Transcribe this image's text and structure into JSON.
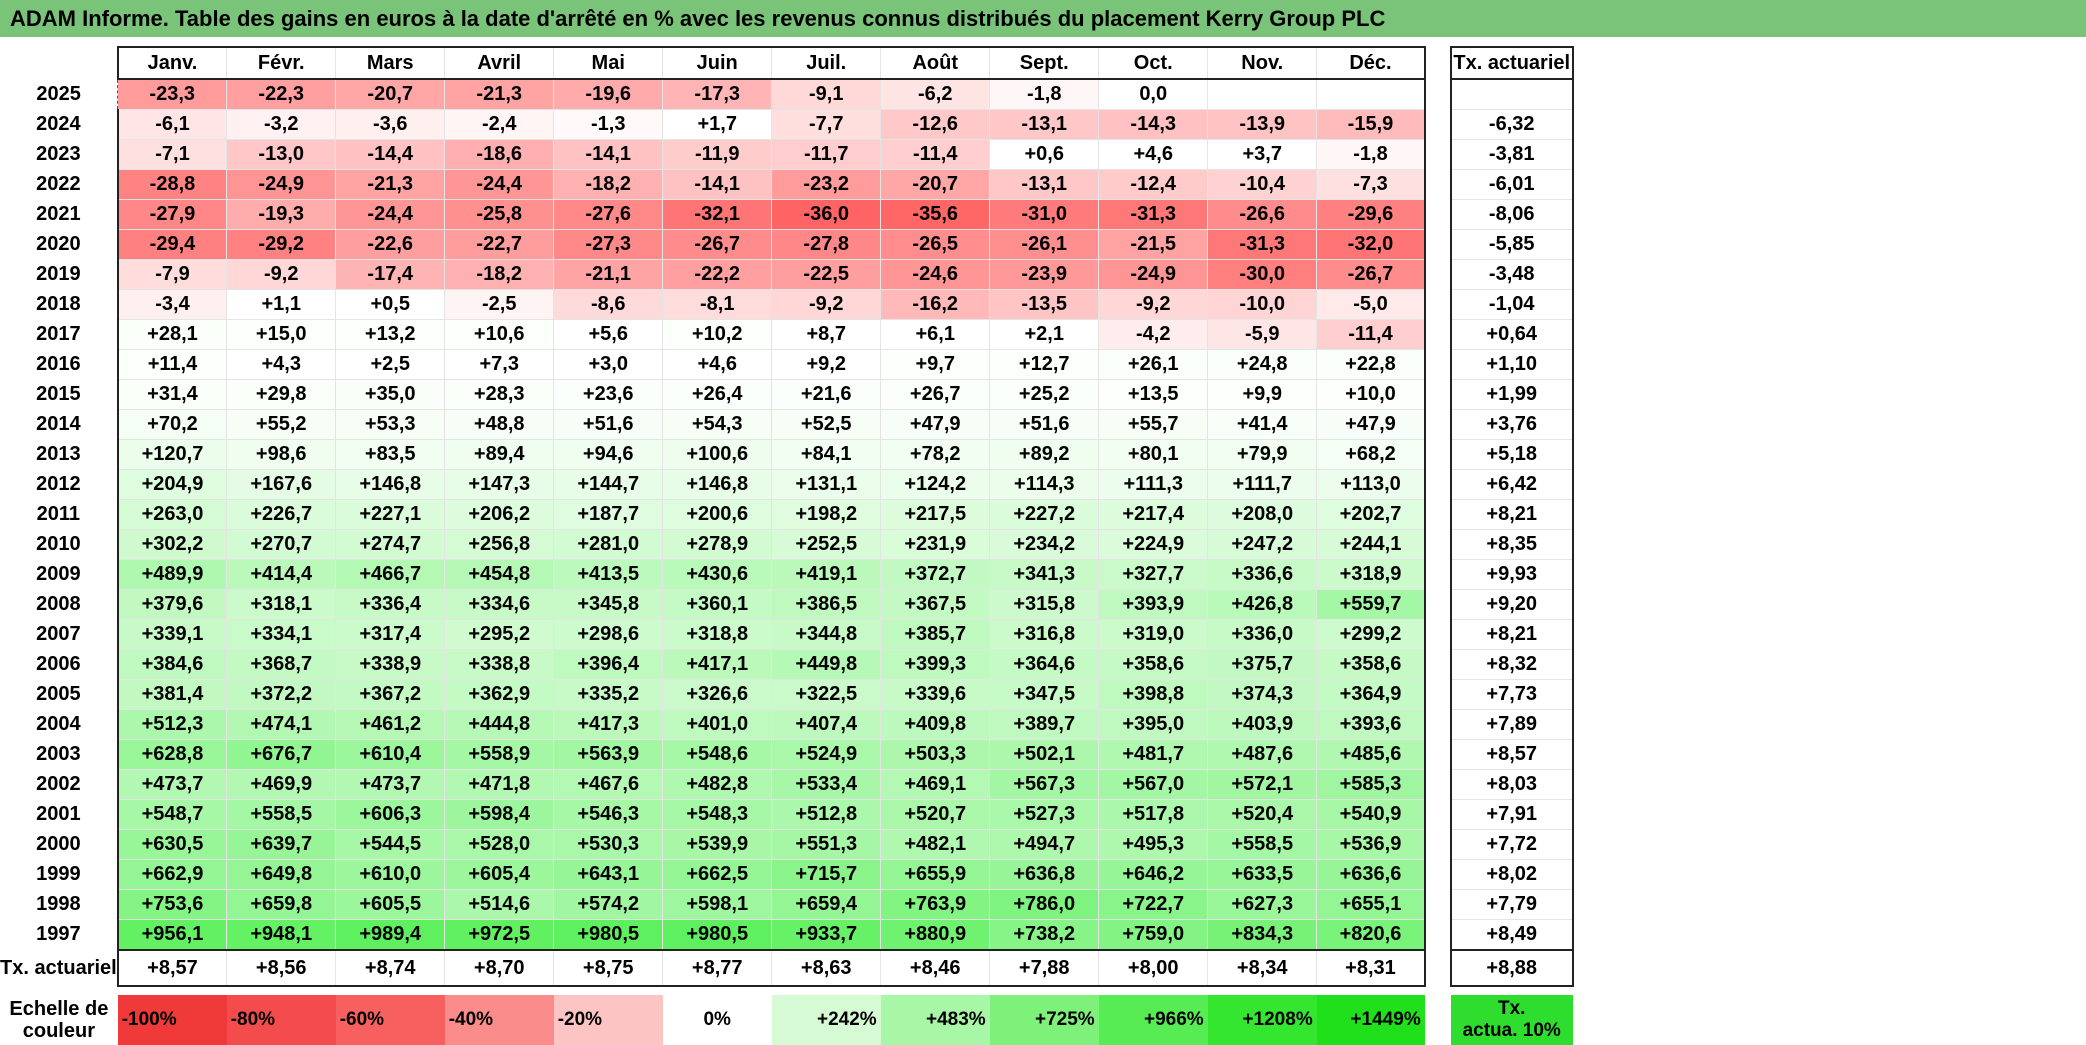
{
  "title": "ADAM Informe. Table des gains en euros à la date d'arrêté en % avec les revenus connus distribués du placement Kerry Group PLC",
  "columns": [
    "Janv.",
    "Févr.",
    "Mars",
    "Avril",
    "Mai",
    "Juin",
    "Juil.",
    "Août",
    "Sept.",
    "Oct.",
    "Nov.",
    "Déc."
  ],
  "annual_header": "Tx. actuariel",
  "rows": [
    {
      "year": "2025",
      "values": [
        "-23,3",
        "-22,3",
        "-20,7",
        "-21,3",
        "-19,6",
        "-17,3",
        "-9,1",
        "-6,2",
        "-1,8",
        "0,0",
        "",
        ""
      ],
      "annual": ""
    },
    {
      "year": "2024",
      "values": [
        "-6,1",
        "-3,2",
        "-3,6",
        "-2,4",
        "-1,3",
        "+1,7",
        "-7,7",
        "-12,6",
        "-13,1",
        "-14,3",
        "-13,9",
        "-15,9"
      ],
      "annual": "-6,32"
    },
    {
      "year": "2023",
      "values": [
        "-7,1",
        "-13,0",
        "-14,4",
        "-18,6",
        "-14,1",
        "-11,9",
        "-11,7",
        "-11,4",
        "+0,6",
        "+4,6",
        "+3,7",
        "-1,8"
      ],
      "annual": "-3,81"
    },
    {
      "year": "2022",
      "values": [
        "-28,8",
        "-24,9",
        "-21,3",
        "-24,4",
        "-18,2",
        "-14,1",
        "-23,2",
        "-20,7",
        "-13,1",
        "-12,4",
        "-10,4",
        "-7,3"
      ],
      "annual": "-6,01"
    },
    {
      "year": "2021",
      "values": [
        "-27,9",
        "-19,3",
        "-24,4",
        "-25,8",
        "-27,6",
        "-32,1",
        "-36,0",
        "-35,6",
        "-31,0",
        "-31,3",
        "-26,6",
        "-29,6"
      ],
      "annual": "-8,06"
    },
    {
      "year": "2020",
      "values": [
        "-29,4",
        "-29,2",
        "-22,6",
        "-22,7",
        "-27,3",
        "-26,7",
        "-27,8",
        "-26,5",
        "-26,1",
        "-21,5",
        "-31,3",
        "-32,0"
      ],
      "annual": "-5,85"
    },
    {
      "year": "2019",
      "values": [
        "-7,9",
        "-9,2",
        "-17,4",
        "-18,2",
        "-21,1",
        "-22,2",
        "-22,5",
        "-24,6",
        "-23,9",
        "-24,9",
        "-30,0",
        "-26,7"
      ],
      "annual": "-3,48"
    },
    {
      "year": "2018",
      "values": [
        "-3,4",
        "+1,1",
        "+0,5",
        "-2,5",
        "-8,6",
        "-8,1",
        "-9,2",
        "-16,2",
        "-13,5",
        "-9,2",
        "-10,0",
        "-5,0"
      ],
      "annual": "-1,04"
    },
    {
      "year": "2017",
      "values": [
        "+28,1",
        "+15,0",
        "+13,2",
        "+10,6",
        "+5,6",
        "+10,2",
        "+8,7",
        "+6,1",
        "+2,1",
        "-4,2",
        "-5,9",
        "-11,4"
      ],
      "annual": "+0,64"
    },
    {
      "year": "2016",
      "values": [
        "+11,4",
        "+4,3",
        "+2,5",
        "+7,3",
        "+3,0",
        "+4,6",
        "+9,2",
        "+9,7",
        "+12,7",
        "+26,1",
        "+24,8",
        "+22,8"
      ],
      "annual": "+1,10"
    },
    {
      "year": "2015",
      "values": [
        "+31,4",
        "+29,8",
        "+35,0",
        "+28,3",
        "+23,6",
        "+26,4",
        "+21,6",
        "+26,7",
        "+25,2",
        "+13,5",
        "+9,9",
        "+10,0"
      ],
      "annual": "+1,99"
    },
    {
      "year": "2014",
      "values": [
        "+70,2",
        "+55,2",
        "+53,3",
        "+48,8",
        "+51,6",
        "+54,3",
        "+52,5",
        "+47,9",
        "+51,6",
        "+55,7",
        "+41,4",
        "+47,9"
      ],
      "annual": "+3,76"
    },
    {
      "year": "2013",
      "values": [
        "+120,7",
        "+98,6",
        "+83,5",
        "+89,4",
        "+94,6",
        "+100,6",
        "+84,1",
        "+78,2",
        "+89,2",
        "+80,1",
        "+79,9",
        "+68,2"
      ],
      "annual": "+5,18"
    },
    {
      "year": "2012",
      "values": [
        "+204,9",
        "+167,6",
        "+146,8",
        "+147,3",
        "+144,7",
        "+146,8",
        "+131,1",
        "+124,2",
        "+114,3",
        "+111,3",
        "+111,7",
        "+113,0"
      ],
      "annual": "+6,42"
    },
    {
      "year": "2011",
      "values": [
        "+263,0",
        "+226,7",
        "+227,1",
        "+206,2",
        "+187,7",
        "+200,6",
        "+198,2",
        "+217,5",
        "+227,2",
        "+217,4",
        "+208,0",
        "+202,7"
      ],
      "annual": "+8,21"
    },
    {
      "year": "2010",
      "values": [
        "+302,2",
        "+270,7",
        "+274,7",
        "+256,8",
        "+281,0",
        "+278,9",
        "+252,5",
        "+231,9",
        "+234,2",
        "+224,9",
        "+247,2",
        "+244,1"
      ],
      "annual": "+8,35"
    },
    {
      "year": "2009",
      "values": [
        "+489,9",
        "+414,4",
        "+466,7",
        "+454,8",
        "+413,5",
        "+430,6",
        "+419,1",
        "+372,7",
        "+341,3",
        "+327,7",
        "+336,6",
        "+318,9"
      ],
      "annual": "+9,93"
    },
    {
      "year": "2008",
      "values": [
        "+379,6",
        "+318,1",
        "+336,4",
        "+334,6",
        "+345,8",
        "+360,1",
        "+386,5",
        "+367,5",
        "+315,8",
        "+393,9",
        "+426,8",
        "+559,7"
      ],
      "annual": "+9,20"
    },
    {
      "year": "2007",
      "values": [
        "+339,1",
        "+334,1",
        "+317,4",
        "+295,2",
        "+298,6",
        "+318,8",
        "+344,8",
        "+385,7",
        "+316,8",
        "+319,0",
        "+336,0",
        "+299,2"
      ],
      "annual": "+8,21"
    },
    {
      "year": "2006",
      "values": [
        "+384,6",
        "+368,7",
        "+338,9",
        "+338,8",
        "+396,4",
        "+417,1",
        "+449,8",
        "+399,3",
        "+364,6",
        "+358,6",
        "+375,7",
        "+358,6"
      ],
      "annual": "+8,32"
    },
    {
      "year": "2005",
      "values": [
        "+381,4",
        "+372,2",
        "+367,2",
        "+362,9",
        "+335,2",
        "+326,6",
        "+322,5",
        "+339,6",
        "+347,5",
        "+398,8",
        "+374,3",
        "+364,9"
      ],
      "annual": "+7,73"
    },
    {
      "year": "2004",
      "values": [
        "+512,3",
        "+474,1",
        "+461,2",
        "+444,8",
        "+417,3",
        "+401,0",
        "+407,4",
        "+409,8",
        "+389,7",
        "+395,0",
        "+403,9",
        "+393,6"
      ],
      "annual": "+7,89"
    },
    {
      "year": "2003",
      "values": [
        "+628,8",
        "+676,7",
        "+610,4",
        "+558,9",
        "+563,9",
        "+548,6",
        "+524,9",
        "+503,3",
        "+502,1",
        "+481,7",
        "+487,6",
        "+485,6"
      ],
      "annual": "+8,57"
    },
    {
      "year": "2002",
      "values": [
        "+473,7",
        "+469,9",
        "+473,7",
        "+471,8",
        "+467,6",
        "+482,8",
        "+533,4",
        "+469,1",
        "+567,3",
        "+567,0",
        "+572,1",
        "+585,3"
      ],
      "annual": "+8,03"
    },
    {
      "year": "2001",
      "values": [
        "+548,7",
        "+558,5",
        "+606,3",
        "+598,4",
        "+546,3",
        "+548,3",
        "+512,8",
        "+520,7",
        "+527,3",
        "+517,8",
        "+520,4",
        "+540,9"
      ],
      "annual": "+7,91"
    },
    {
      "year": "2000",
      "values": [
        "+630,5",
        "+639,7",
        "+544,5",
        "+528,0",
        "+530,3",
        "+539,9",
        "+551,3",
        "+482,1",
        "+494,7",
        "+495,3",
        "+558,5",
        "+536,9"
      ],
      "annual": "+7,72"
    },
    {
      "year": "1999",
      "values": [
        "+662,9",
        "+649,8",
        "+610,0",
        "+605,4",
        "+643,1",
        "+662,5",
        "+715,7",
        "+655,9",
        "+636,8",
        "+646,2",
        "+633,5",
        "+636,6"
      ],
      "annual": "+8,02"
    },
    {
      "year": "1998",
      "values": [
        "+753,6",
        "+659,8",
        "+605,5",
        "+514,6",
        "+574,2",
        "+598,1",
        "+659,4",
        "+763,9",
        "+786,0",
        "+722,7",
        "+627,3",
        "+655,1"
      ],
      "annual": "+7,79"
    },
    {
      "year": "1997",
      "values": [
        "+956,1",
        "+948,1",
        "+989,4",
        "+972,5",
        "+980,5",
        "+980,5",
        "+933,7",
        "+880,9",
        "+738,2",
        "+759,0",
        "+834,3",
        "+820,6"
      ],
      "annual": "+8,49"
    }
  ],
  "tx_row": {
    "label": "Tx. actuariel",
    "values": [
      "+8,57",
      "+8,56",
      "+8,74",
      "+8,70",
      "+8,75",
      "+8,77",
      "+8,63",
      "+8,46",
      "+7,88",
      "+8,00",
      "+8,34",
      "+8,31"
    ],
    "overall": "+8,88"
  },
  "scale": {
    "label_line1": "Echelle de",
    "label_line2": "couleur",
    "items": [
      {
        "text": "-100%",
        "color": "#f03a3a",
        "align": "left"
      },
      {
        "text": "-80%",
        "color": "#f44c4c",
        "align": "left"
      },
      {
        "text": "-60%",
        "color": "#f86060",
        "align": "left"
      },
      {
        "text": "-40%",
        "color": "#fb8c8c",
        "align": "left"
      },
      {
        "text": "-20%",
        "color": "#fdc4c4",
        "align": "left"
      },
      {
        "text": "0%",
        "color": "#ffffff",
        "align": "center"
      },
      {
        "text": "+242%",
        "color": "#d6fbd4",
        "align": "right"
      },
      {
        "text": "+483%",
        "color": "#a8f7a6",
        "align": "right"
      },
      {
        "text": "+725%",
        "color": "#7ef17a",
        "align": "right"
      },
      {
        "text": "+966%",
        "color": "#58ec54",
        "align": "right"
      },
      {
        "text": "+1208%",
        "color": "#34e630",
        "align": "right"
      },
      {
        "text": "+1449%",
        "color": "#1fe01b",
        "align": "right"
      }
    ],
    "annual_line1": "Tx.",
    "annual_line2": "actua. 10%",
    "annual_color": "#2fdd2f"
  },
  "colors": {
    "title_bg": "#7ac47a",
    "negative_max": "#ff6464",
    "positive_max": "#5cf05c"
  }
}
